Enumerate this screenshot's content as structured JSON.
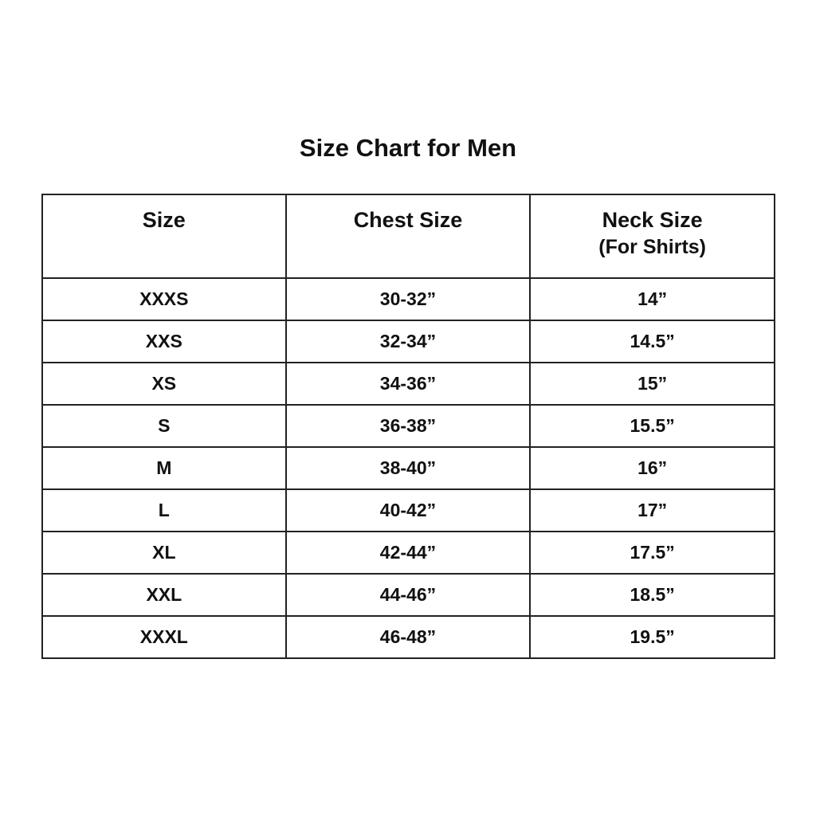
{
  "title": "Size Chart for Men",
  "table": {
    "headers": {
      "size": "Size",
      "chest": "Chest Size",
      "neck": "Neck Size",
      "neck_sub": "(For Shirts)"
    },
    "rows": [
      {
        "size": "XXXS",
        "chest": "30-32”",
        "neck": "14”"
      },
      {
        "size": "XXS",
        "chest": "32-34”",
        "neck": "14.5”"
      },
      {
        "size": "XS",
        "chest": "34-36”",
        "neck": "15”"
      },
      {
        "size": "S",
        "chest": "36-38”",
        "neck": "15.5”"
      },
      {
        "size": "M",
        "chest": "38-40”",
        "neck": "16”"
      },
      {
        "size": "L",
        "chest": "40-42”",
        "neck": "17”"
      },
      {
        "size": "XL",
        "chest": "42-44”",
        "neck": "17.5”"
      },
      {
        "size": "XXL",
        "chest": "44-46”",
        "neck": "18.5”"
      },
      {
        "size": "XXXL",
        "chest": "46-48”",
        "neck": "19.5”"
      }
    ]
  }
}
